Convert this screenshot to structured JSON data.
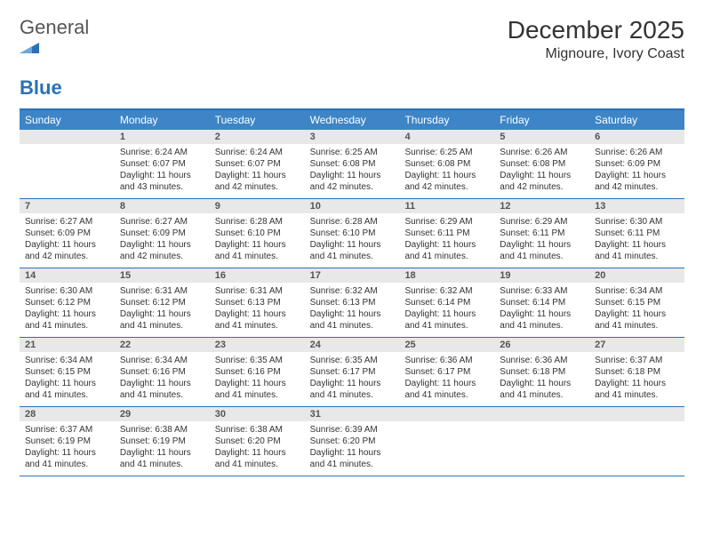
{
  "brand": {
    "word1": "General",
    "word2": "Blue"
  },
  "title": "December 2025",
  "location": "Mignoure, Ivory Coast",
  "colors": {
    "header_bg": "#3d85c6",
    "border": "#2a71b8",
    "daynum_bg": "#e8e8e8",
    "text": "#333333",
    "white": "#ffffff"
  },
  "day_headers": [
    "Sunday",
    "Monday",
    "Tuesday",
    "Wednesday",
    "Thursday",
    "Friday",
    "Saturday"
  ],
  "weeks": [
    {
      "nums": [
        "",
        "1",
        "2",
        "3",
        "4",
        "5",
        "6"
      ],
      "cells": [
        {
          "sunrise": "",
          "sunset": "",
          "daylight": ""
        },
        {
          "sunrise": "Sunrise: 6:24 AM",
          "sunset": "Sunset: 6:07 PM",
          "daylight": "Daylight: 11 hours and 43 minutes."
        },
        {
          "sunrise": "Sunrise: 6:24 AM",
          "sunset": "Sunset: 6:07 PM",
          "daylight": "Daylight: 11 hours and 42 minutes."
        },
        {
          "sunrise": "Sunrise: 6:25 AM",
          "sunset": "Sunset: 6:08 PM",
          "daylight": "Daylight: 11 hours and 42 minutes."
        },
        {
          "sunrise": "Sunrise: 6:25 AM",
          "sunset": "Sunset: 6:08 PM",
          "daylight": "Daylight: 11 hours and 42 minutes."
        },
        {
          "sunrise": "Sunrise: 6:26 AM",
          "sunset": "Sunset: 6:08 PM",
          "daylight": "Daylight: 11 hours and 42 minutes."
        },
        {
          "sunrise": "Sunrise: 6:26 AM",
          "sunset": "Sunset: 6:09 PM",
          "daylight": "Daylight: 11 hours and 42 minutes."
        }
      ]
    },
    {
      "nums": [
        "7",
        "8",
        "9",
        "10",
        "11",
        "12",
        "13"
      ],
      "cells": [
        {
          "sunrise": "Sunrise: 6:27 AM",
          "sunset": "Sunset: 6:09 PM",
          "daylight": "Daylight: 11 hours and 42 minutes."
        },
        {
          "sunrise": "Sunrise: 6:27 AM",
          "sunset": "Sunset: 6:09 PM",
          "daylight": "Daylight: 11 hours and 42 minutes."
        },
        {
          "sunrise": "Sunrise: 6:28 AM",
          "sunset": "Sunset: 6:10 PM",
          "daylight": "Daylight: 11 hours and 41 minutes."
        },
        {
          "sunrise": "Sunrise: 6:28 AM",
          "sunset": "Sunset: 6:10 PM",
          "daylight": "Daylight: 11 hours and 41 minutes."
        },
        {
          "sunrise": "Sunrise: 6:29 AM",
          "sunset": "Sunset: 6:11 PM",
          "daylight": "Daylight: 11 hours and 41 minutes."
        },
        {
          "sunrise": "Sunrise: 6:29 AM",
          "sunset": "Sunset: 6:11 PM",
          "daylight": "Daylight: 11 hours and 41 minutes."
        },
        {
          "sunrise": "Sunrise: 6:30 AM",
          "sunset": "Sunset: 6:11 PM",
          "daylight": "Daylight: 11 hours and 41 minutes."
        }
      ]
    },
    {
      "nums": [
        "14",
        "15",
        "16",
        "17",
        "18",
        "19",
        "20"
      ],
      "cells": [
        {
          "sunrise": "Sunrise: 6:30 AM",
          "sunset": "Sunset: 6:12 PM",
          "daylight": "Daylight: 11 hours and 41 minutes."
        },
        {
          "sunrise": "Sunrise: 6:31 AM",
          "sunset": "Sunset: 6:12 PM",
          "daylight": "Daylight: 11 hours and 41 minutes."
        },
        {
          "sunrise": "Sunrise: 6:31 AM",
          "sunset": "Sunset: 6:13 PM",
          "daylight": "Daylight: 11 hours and 41 minutes."
        },
        {
          "sunrise": "Sunrise: 6:32 AM",
          "sunset": "Sunset: 6:13 PM",
          "daylight": "Daylight: 11 hours and 41 minutes."
        },
        {
          "sunrise": "Sunrise: 6:32 AM",
          "sunset": "Sunset: 6:14 PM",
          "daylight": "Daylight: 11 hours and 41 minutes."
        },
        {
          "sunrise": "Sunrise: 6:33 AM",
          "sunset": "Sunset: 6:14 PM",
          "daylight": "Daylight: 11 hours and 41 minutes."
        },
        {
          "sunrise": "Sunrise: 6:34 AM",
          "sunset": "Sunset: 6:15 PM",
          "daylight": "Daylight: 11 hours and 41 minutes."
        }
      ]
    },
    {
      "nums": [
        "21",
        "22",
        "23",
        "24",
        "25",
        "26",
        "27"
      ],
      "cells": [
        {
          "sunrise": "Sunrise: 6:34 AM",
          "sunset": "Sunset: 6:15 PM",
          "daylight": "Daylight: 11 hours and 41 minutes."
        },
        {
          "sunrise": "Sunrise: 6:34 AM",
          "sunset": "Sunset: 6:16 PM",
          "daylight": "Daylight: 11 hours and 41 minutes."
        },
        {
          "sunrise": "Sunrise: 6:35 AM",
          "sunset": "Sunset: 6:16 PM",
          "daylight": "Daylight: 11 hours and 41 minutes."
        },
        {
          "sunrise": "Sunrise: 6:35 AM",
          "sunset": "Sunset: 6:17 PM",
          "daylight": "Daylight: 11 hours and 41 minutes."
        },
        {
          "sunrise": "Sunrise: 6:36 AM",
          "sunset": "Sunset: 6:17 PM",
          "daylight": "Daylight: 11 hours and 41 minutes."
        },
        {
          "sunrise": "Sunrise: 6:36 AM",
          "sunset": "Sunset: 6:18 PM",
          "daylight": "Daylight: 11 hours and 41 minutes."
        },
        {
          "sunrise": "Sunrise: 6:37 AM",
          "sunset": "Sunset: 6:18 PM",
          "daylight": "Daylight: 11 hours and 41 minutes."
        }
      ]
    },
    {
      "nums": [
        "28",
        "29",
        "30",
        "31",
        "",
        "",
        ""
      ],
      "cells": [
        {
          "sunrise": "Sunrise: 6:37 AM",
          "sunset": "Sunset: 6:19 PM",
          "daylight": "Daylight: 11 hours and 41 minutes."
        },
        {
          "sunrise": "Sunrise: 6:38 AM",
          "sunset": "Sunset: 6:19 PM",
          "daylight": "Daylight: 11 hours and 41 minutes."
        },
        {
          "sunrise": "Sunrise: 6:38 AM",
          "sunset": "Sunset: 6:20 PM",
          "daylight": "Daylight: 11 hours and 41 minutes."
        },
        {
          "sunrise": "Sunrise: 6:39 AM",
          "sunset": "Sunset: 6:20 PM",
          "daylight": "Daylight: 11 hours and 41 minutes."
        },
        {
          "sunrise": "",
          "sunset": "",
          "daylight": ""
        },
        {
          "sunrise": "",
          "sunset": "",
          "daylight": ""
        },
        {
          "sunrise": "",
          "sunset": "",
          "daylight": ""
        }
      ]
    }
  ]
}
